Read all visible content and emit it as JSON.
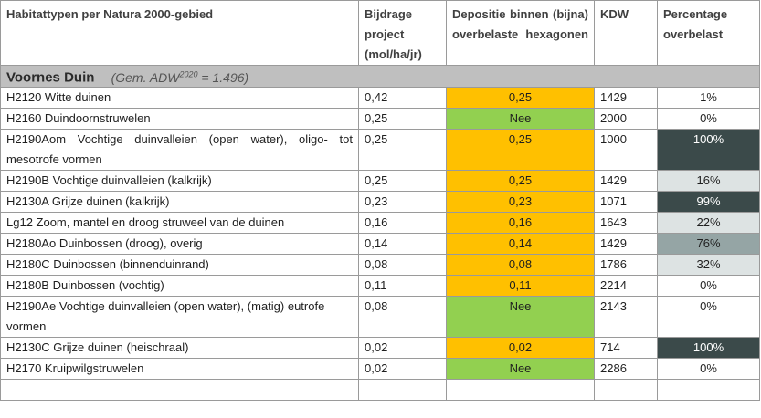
{
  "headers": {
    "habitat": "Habitattypen per Natura 2000-gebied",
    "bijdrage": "Bijdrage project (mol/ha/jr)",
    "depositie": "Depositie binnen (bijna) overbelaste hexagonen",
    "kdw": "KDW",
    "percentage": "Percentage overbelast"
  },
  "section": {
    "name": "Voornes Duin",
    "note_prefix": "(Gem. ADW",
    "note_sup": "2020",
    "note_suffix": " = 1.496)"
  },
  "rows": [
    {
      "habitat": "H2120 Witte duinen",
      "bijdrage": "0,42",
      "depositie": "0,25",
      "kdw": "1429",
      "percentage": "1%"
    },
    {
      "habitat": "H2160 Duindoornstruwelen",
      "bijdrage": "0,25",
      "depositie": "Nee",
      "kdw": "2000",
      "percentage": "0%"
    },
    {
      "habitat": "H2190Aom Vochtige duinvalleien (open water), oligo- tot mesotrofe vormen",
      "bijdrage": "0,25",
      "depositie": "0,25",
      "kdw": "1000",
      "percentage": "100%"
    },
    {
      "habitat": "H2190B Vochtige duinvalleien (kalkrijk)",
      "bijdrage": "0,25",
      "depositie": "0,25",
      "kdw": "1429",
      "percentage": "16%"
    },
    {
      "habitat": "H2130A Grijze duinen (kalkrijk)",
      "bijdrage": "0,23",
      "depositie": "0,23",
      "kdw": "1071",
      "percentage": "99%"
    },
    {
      "habitat": "Lg12 Zoom, mantel en droog struweel van de duinen",
      "bijdrage": "0,16",
      "depositie": "0,16",
      "kdw": "1643",
      "percentage": "22%"
    },
    {
      "habitat": "H2180Ao Duinbossen (droog), overig",
      "bijdrage": "0,14",
      "depositie": "0,14",
      "kdw": "1429",
      "percentage": "76%"
    },
    {
      "habitat": "H2180C Duinbossen (binnenduinrand)",
      "bijdrage": "0,08",
      "depositie": "0,08",
      "kdw": "1786",
      "percentage": "32%"
    },
    {
      "habitat": "H2180B Duinbossen (vochtig)",
      "bijdrage": "0,11",
      "depositie": "0,11",
      "kdw": "2214",
      "percentage": "0%"
    },
    {
      "habitat": "H2190Ae Vochtige duinvalleien (open water), (matig) eutrofe vormen",
      "bijdrage": "0,08",
      "depositie": "Nee",
      "kdw": "2143",
      "percentage": "0%"
    },
    {
      "habitat": "H2130C Grijze duinen (heischraal)",
      "bijdrage": "0,02",
      "depositie": "0,02",
      "kdw": "714",
      "percentage": "100%"
    },
    {
      "habitat": "H2170 Kruipwilgstruwelen",
      "bijdrage": "0,02",
      "depositie": "Nee",
      "kdw": "2286",
      "percentage": "0%"
    }
  ],
  "colors": {
    "depositie_yes": "#ffc000",
    "depositie_nee": "#92d050",
    "pct_high": "#3b4a4a",
    "pct_medium": "#95a5a5",
    "pct_low": "#dde3e3",
    "section_band": "#bfbfbf"
  }
}
